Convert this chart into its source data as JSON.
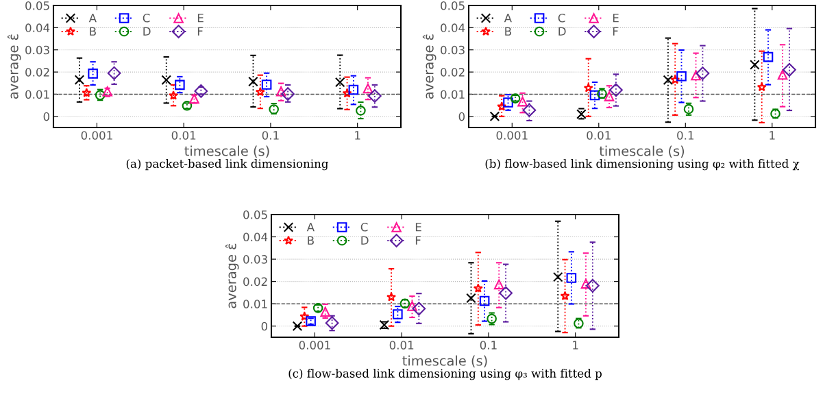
{
  "chart_data": [
    {
      "type": "scatter",
      "title": "(a) packet-based link dimensioning",
      "xlabel": "timescale (s)",
      "ylabel": "average ε̂",
      "log": "x",
      "grid": "y",
      "legend": "top left",
      "xlim": [
        0.000316,
        3.16
      ],
      "xticks": [
        0.001,
        0.01,
        0.1,
        1
      ],
      "ylim": [
        -0.005,
        0.05
      ],
      "yticks": [
        0,
        0.01,
        0.02,
        0.03,
        0.04,
        0.05
      ],
      "ref_lines": [
        {
          "axis": "y",
          "value": 0.01,
          "line_style": "dashed",
          "color": "#555555"
        }
      ],
      "series": [
        {
          "name": "A",
          "color": "#000000",
          "marker": "cross",
          "x": [
            0.00063,
            0.0063,
            0.063,
            0.63
          ],
          "values": [
            0.0165,
            0.0164,
            0.0157,
            0.0154
          ],
          "errors": [
            [
              0.0065,
              0.0263
            ],
            [
              0.006,
              0.0268
            ],
            [
              0.0043,
              0.0275
            ],
            [
              0.0035,
              0.0276
            ]
          ]
        },
        {
          "name": "B",
          "color": "#ff0000",
          "marker": "star",
          "x": [
            0.00076,
            0.0076,
            0.076,
            0.76
          ],
          "values": [
            0.0106,
            0.0094,
            0.011,
            0.0104
          ],
          "errors": [
            [
              0.0075,
              0.0138
            ],
            [
              0.0048,
              0.0142
            ],
            [
              0.0036,
              0.0186
            ],
            [
              0.0031,
              0.0177
            ]
          ]
        },
        {
          "name": "C",
          "color": "#0000ff",
          "marker": "square",
          "x": [
            0.0009,
            0.009,
            0.09,
            0.9
          ],
          "values": [
            0.0193,
            0.0142,
            0.0143,
            0.012
          ],
          "errors": [
            [
              0.0142,
              0.0246
            ],
            [
              0.0107,
              0.0179
            ],
            [
              0.0089,
              0.0195
            ],
            [
              0.0054,
              0.0183
            ]
          ]
        },
        {
          "name": "D",
          "color": "#008000",
          "marker": "circle",
          "x": [
            0.00109,
            0.0109,
            0.109,
            1.09
          ],
          "values": [
            0.0096,
            0.0048,
            0.0032,
            0.0026
          ],
          "errors": [
            [
              0.0073,
              0.0121
            ],
            [
              0.0035,
              0.006
            ],
            [
              0.0012,
              0.0058
            ],
            [
              -0.001,
              0.0064
            ]
          ]
        },
        {
          "name": "E",
          "color": "#ff1493",
          "marker": "triangle",
          "x": [
            0.00132,
            0.0132,
            0.132,
            1.32
          ],
          "values": [
            0.0113,
            0.008,
            0.0113,
            0.0126
          ],
          "errors": [
            [
              0.009,
              0.0127
            ],
            [
              0.006,
              0.0096
            ],
            [
              0.0071,
              0.0149
            ],
            [
              0.0076,
              0.0174
            ]
          ]
        },
        {
          "name": "F",
          "color": "#5b1c9e",
          "marker": "diamond",
          "x": [
            0.00158,
            0.0158,
            0.158,
            1.58
          ],
          "values": [
            0.0195,
            0.0114,
            0.0101,
            0.0092
          ],
          "errors": [
            [
              0.0145,
              0.0246
            ],
            [
              0.01,
              0.0132
            ],
            [
              0.0065,
              0.0142
            ],
            [
              0.0042,
              0.0142
            ]
          ]
        }
      ]
    },
    {
      "type": "scatter",
      "title": "(b) flow-based link dimensioning using φ₂ with fitted χ",
      "xlabel": "timescale (s)",
      "ylabel": "average ε̂",
      "log": "x",
      "grid": "y",
      "legend": "top left",
      "xlim": [
        0.000316,
        3.16
      ],
      "xticks": [
        0.001,
        0.01,
        0.1,
        1
      ],
      "ylim": [
        -0.005,
        0.05
      ],
      "yticks": [
        0,
        0.01,
        0.02,
        0.03,
        0.04,
        0.05
      ],
      "ref_lines": [
        {
          "axis": "y",
          "value": 0.01,
          "line_style": "dashed",
          "color": "#555555"
        }
      ],
      "series": [
        {
          "name": "A",
          "color": "#000000",
          "marker": "cross",
          "x": [
            0.00063,
            0.0063,
            0.063,
            0.63
          ],
          "values": [
            0,
            0.001,
            0.0164,
            0.0233
          ],
          "errors": [
            null,
            [
              -0.0011,
              0.0035
            ],
            [
              -0.0026,
              0.0353
            ],
            [
              -0.0017,
              0.0486
            ]
          ]
        },
        {
          "name": "B",
          "color": "#ff0000",
          "marker": "star",
          "x": [
            0.00076,
            0.0076,
            0.076,
            0.76
          ],
          "values": [
            0.0044,
            0.0128,
            0.0165,
            0.0132
          ],
          "errors": [
            [
              0,
              0.0093
            ],
            [
              0,
              0.026
            ],
            [
              0.0006,
              0.0328
            ],
            [
              -0.0028,
              0.0294
            ]
          ]
        },
        {
          "name": "C",
          "color": "#0000ff",
          "marker": "square",
          "x": [
            0.0009,
            0.009,
            0.09,
            0.9
          ],
          "values": [
            0.0063,
            0.0095,
            0.0181,
            0.0268
          ],
          "errors": [
            [
              0.0028,
              0.0098
            ],
            [
              0.0036,
              0.0154
            ],
            [
              0.0063,
              0.0299
            ],
            [
              0.0143,
              0.039
            ]
          ]
        },
        {
          "name": "D",
          "color": "#008000",
          "marker": "circle",
          "x": [
            0.00109,
            0.0109,
            0.109,
            1.09
          ],
          "values": [
            0.0081,
            0.0102,
            0.0033,
            0.0012
          ],
          "errors": [
            [
              0.0069,
              0.0095
            ],
            [
              0.0083,
              0.0125
            ],
            [
              0.0006,
              0.0059
            ],
            [
              -0.0007,
              0.0032
            ]
          ]
        },
        {
          "name": "E",
          "color": "#ff1493",
          "marker": "triangle",
          "x": [
            0.00132,
            0.0132,
            0.132,
            1.32
          ],
          "values": [
            0.0067,
            0.0091,
            0.0185,
            0.0188
          ],
          "errors": [
            [
              0.0017,
              0.0105
            ],
            [
              0.004,
              0.0138
            ],
            [
              0.0085,
              0.0285
            ],
            [
              0.0044,
              0.0323
            ]
          ]
        },
        {
          "name": "F",
          "color": "#5b1c9e",
          "marker": "diamond",
          "x": [
            0.00158,
            0.0158,
            0.158,
            1.58
          ],
          "values": [
            0.0028,
            0.0119,
            0.0194,
            0.021
          ],
          "errors": [
            [
              -0.0019,
              0.0069
            ],
            [
              0.0047,
              0.019
            ],
            [
              0.0069,
              0.0319
            ],
            [
              0.0027,
              0.0396
            ]
          ]
        }
      ]
    },
    {
      "type": "scatter",
      "title": "(c) flow-based link dimensioning using φ₃ with fitted p",
      "xlabel": "timescale (s)",
      "ylabel": "average ε̂",
      "log": "x",
      "grid": "y",
      "legend": "top left",
      "xlim": [
        0.000316,
        3.16
      ],
      "xticks": [
        0.001,
        0.01,
        0.1,
        1
      ],
      "ylim": [
        -0.005,
        0.05
      ],
      "yticks": [
        0,
        0.01,
        0.02,
        0.03,
        0.04,
        0.05
      ],
      "ref_lines": [
        {
          "axis": "y",
          "value": 0.01,
          "line_style": "dashed",
          "color": "#555555"
        }
      ],
      "series": [
        {
          "name": "A",
          "color": "#000000",
          "marker": "cross",
          "x": [
            0.00063,
            0.0063,
            0.063,
            0.63
          ],
          "values": [
            0,
            0.0005,
            0.0125,
            0.022
          ],
          "errors": [
            null,
            [
              -0.001,
              0.0019
            ],
            [
              -0.0034,
              0.0284
            ],
            [
              -0.0024,
              0.047
            ]
          ]
        },
        {
          "name": "B",
          "color": "#ff0000",
          "marker": "star",
          "x": [
            0.00076,
            0.0076,
            0.076,
            0.76
          ],
          "values": [
            0.0043,
            0.013,
            0.0169,
            0.0135
          ],
          "errors": [
            [
              0,
              0.0084
            ],
            [
              0,
              0.0257
            ],
            [
              0.0005,
              0.033
            ],
            [
              -0.0029,
              0.0298
            ]
          ]
        },
        {
          "name": "C",
          "color": "#0000ff",
          "marker": "square",
          "x": [
            0.0009,
            0.009,
            0.09,
            0.9
          ],
          "values": [
            0.0022,
            0.0053,
            0.0113,
            0.0216
          ],
          "errors": [
            [
              0.0008,
              0.0035
            ],
            [
              0.0017,
              0.0088
            ],
            [
              0.0022,
              0.0202
            ],
            [
              0.0099,
              0.0333
            ]
          ]
        },
        {
          "name": "D",
          "color": "#008000",
          "marker": "circle",
          "x": [
            0.00109,
            0.0109,
            0.109,
            1.09
          ],
          "values": [
            0.0081,
            0.0101,
            0.0033,
            0.0012
          ],
          "errors": [
            [
              0.0066,
              0.0095
            ],
            [
              0.0084,
              0.0119
            ],
            [
              0.0007,
              0.0059
            ],
            [
              -0.0008,
              0.0034
            ]
          ]
        },
        {
          "name": "E",
          "color": "#ff1493",
          "marker": "triangle",
          "x": [
            0.00132,
            0.0132,
            0.132,
            1.32
          ],
          "values": [
            0.0064,
            0.009,
            0.0187,
            0.019
          ],
          "errors": [
            [
              0.0036,
              0.0098
            ],
            [
              0.0039,
              0.0134
            ],
            [
              0.0083,
              0.0284
            ],
            [
              0.0046,
              0.0327
            ]
          ]
        },
        {
          "name": "F",
          "color": "#5b1c9e",
          "marker": "diamond",
          "x": [
            0.00158,
            0.0158,
            0.158,
            1.58
          ],
          "values": [
            0.0014,
            0.0078,
            0.0148,
            0.0181
          ],
          "errors": [
            [
              -0.002,
              0.0046
            ],
            [
              0.0012,
              0.0146
            ],
            [
              0.0019,
              0.0277
            ],
            [
              -0.0014,
              0.0376
            ]
          ]
        }
      ]
    }
  ]
}
